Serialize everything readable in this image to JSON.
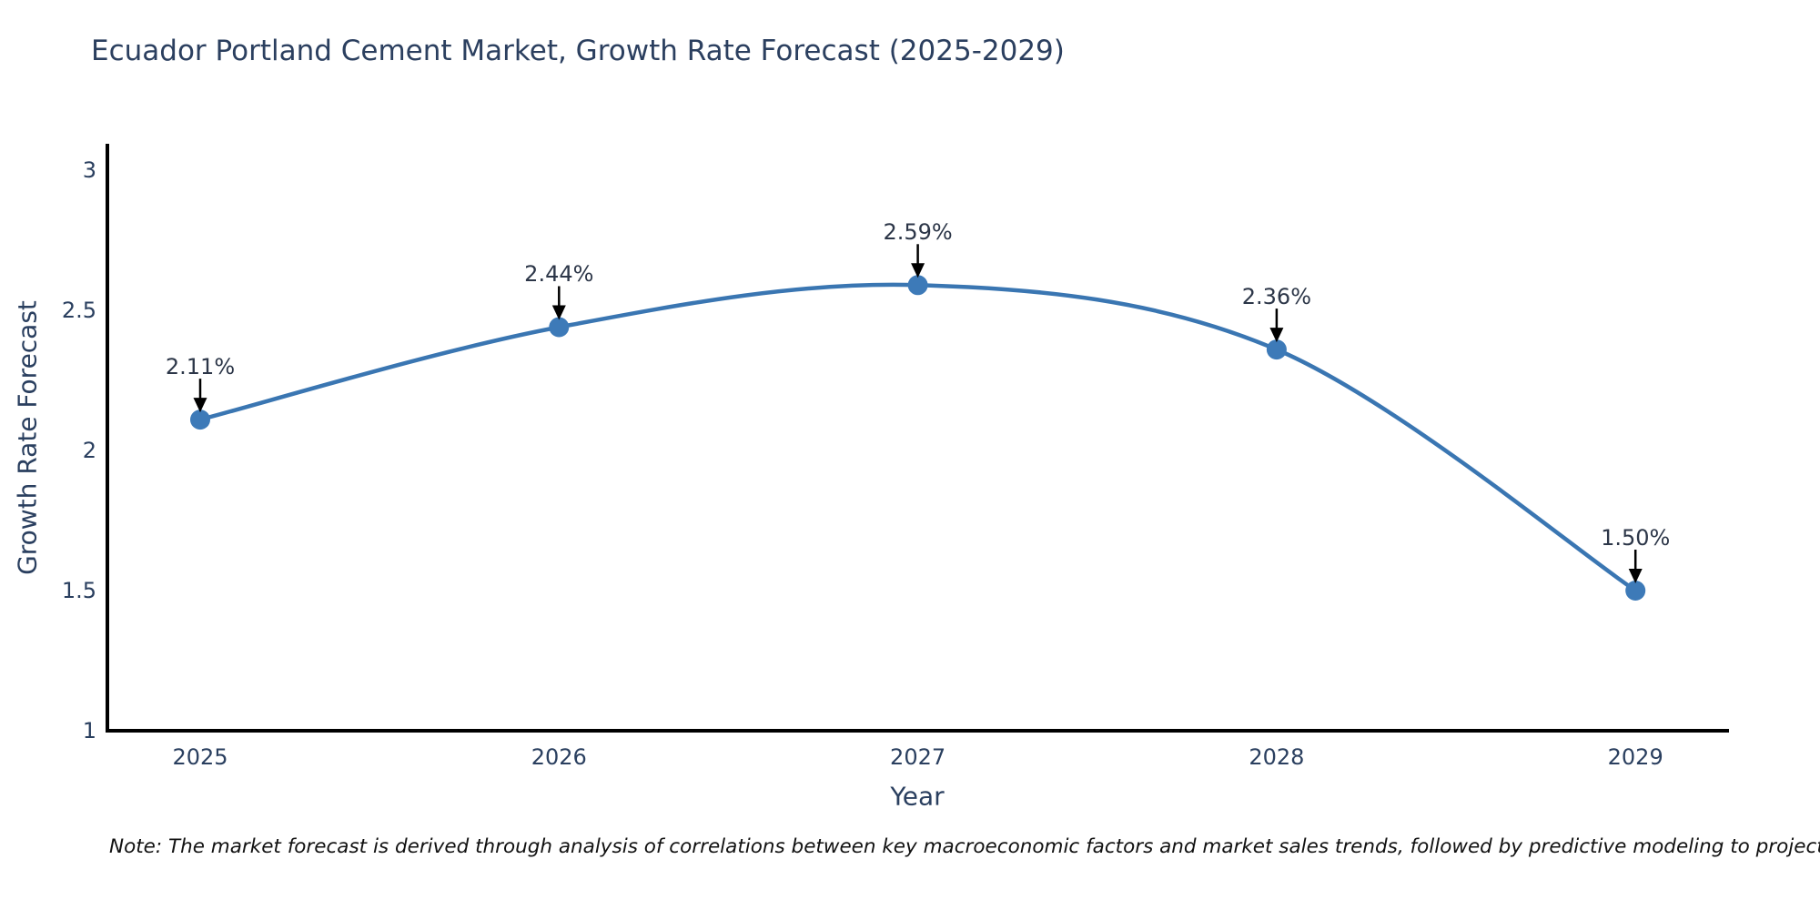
{
  "page": {
    "title": "Ecuador Portland Cement Market, Growth Rate Forecast (2025-2029)",
    "note": "Note: The market forecast is derived through analysis of correlations between key macroeconomic factors and market sales trends, followed by predictive modeling to project future sales"
  },
  "chart_data": {
    "type": "line",
    "title": "Ecuador Portland Cement Market, Growth Rate Forecast (2025-2029)",
    "categories": [
      "2025",
      "2026",
      "2027",
      "2028",
      "2029"
    ],
    "series": [
      {
        "name": "Growth Rate Forecast",
        "values": [
          2.11,
          2.44,
          2.59,
          2.36,
          1.5
        ]
      }
    ],
    "point_labels": [
      "2.11%",
      "2.44%",
      "2.59%",
      "2.36%",
      "1.50%"
    ],
    "xlabel": "Year",
    "ylabel": "Growth Rate Forecast",
    "ylim": [
      1,
      3
    ],
    "yticks": [
      1,
      1.5,
      2,
      2.5,
      3
    ],
    "grid": false,
    "legend_position": "none",
    "line_shape": "spline",
    "colors": {
      "line": "#3a76b2",
      "marker": "#3d7ab8",
      "arrow": "#000000",
      "axis": "#000000",
      "tick_text": "#2a3f5f",
      "note_text": "#111111"
    }
  }
}
